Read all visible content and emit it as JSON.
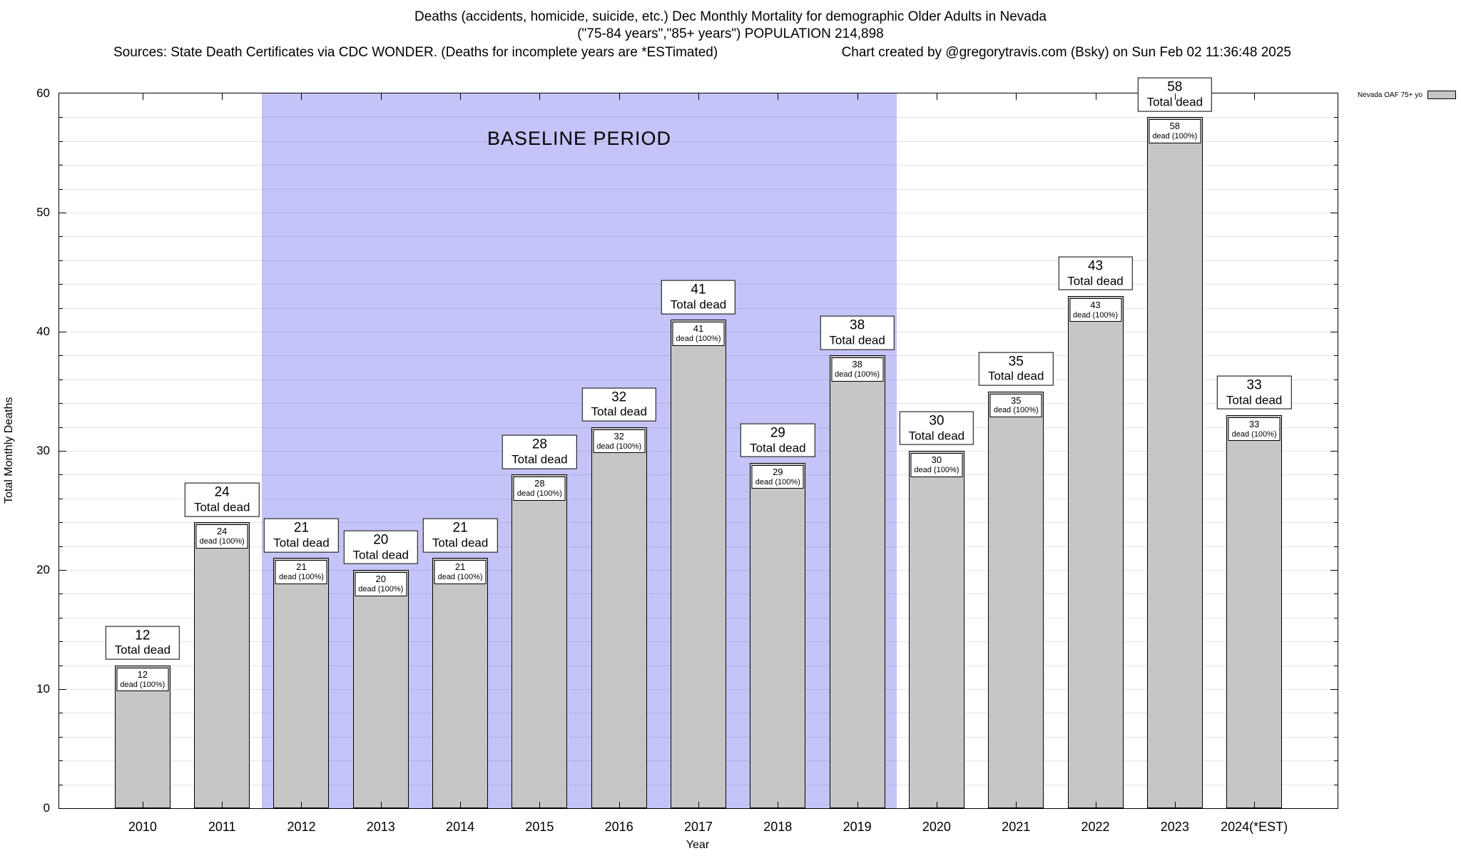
{
  "header": {
    "title_line1": "Deaths (accidents, homicide, suicide, etc.) Dec Monthly Mortality for demographic Older Adults in Nevada",
    "title_line2": "(\"75-84 years\",\"85+ years\") POPULATION 214,898",
    "sources": "Sources: State Death Certificates via CDC WONDER. (Deaths for incomplete years are *ESTimated)",
    "credit": "Chart created by @gregorytravis.com (Bsky) on Sun Feb 02 11:36:48 2025"
  },
  "chart_data": {
    "type": "bar",
    "categories": [
      "2010",
      "2011",
      "2012",
      "2013",
      "2014",
      "2015",
      "2016",
      "2017",
      "2018",
      "2019",
      "2020",
      "2021",
      "2022",
      "2023",
      "2024(*EST)"
    ],
    "values": [
      12,
      24,
      21,
      20,
      21,
      28,
      32,
      41,
      29,
      38,
      30,
      35,
      43,
      58,
      33
    ],
    "title": "Deaths (accidents, homicide, suicide, etc.) Dec Monthly Mortality for demographic Older Adults in Nevada",
    "subtitle": "(\"75-84 years\",\"85+ years\") POPULATION 214,898",
    "xlabel": "Year",
    "ylabel": "Total Monthly Deaths",
    "ylim": [
      0,
      60
    ],
    "yticks": [
      0,
      10,
      20,
      30,
      40,
      50,
      60
    ],
    "minor_grid_step": 2,
    "grid": "on",
    "bar_top_label_suffix": "Total dead",
    "bar_inner_label_suffix": "dead (100%)",
    "baseline": {
      "label": "BASELINE PERIOD",
      "start_category": "2012",
      "end_category": "2019"
    },
    "legend": {
      "label": "Nevada OAF 75+ yo",
      "position": "top-right-outside"
    },
    "colors": {
      "bar_fill": "#c6c6c6",
      "bar_border": "#000000",
      "baseline_fill": "#c4c4f8",
      "label_box_bg": "#ffffff"
    }
  }
}
